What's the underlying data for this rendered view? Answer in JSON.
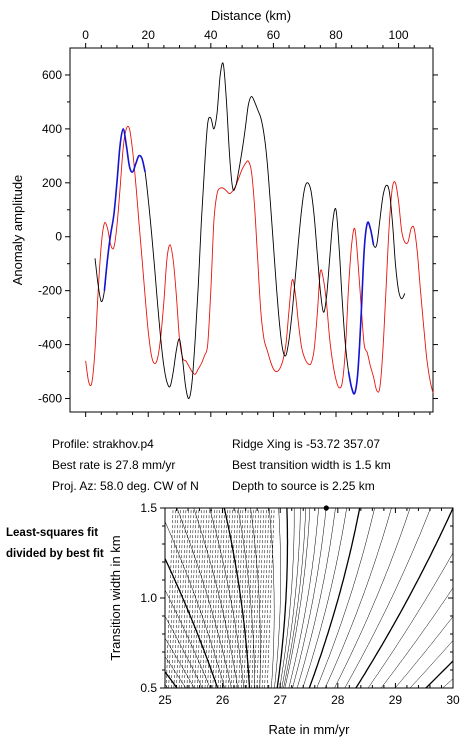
{
  "chart_data": [
    {
      "type": "line",
      "xlabel": "Distance (km)",
      "ylabel": "Anomaly amplitude",
      "xlim": [
        -5,
        111
      ],
      "ylim": [
        -650,
        700
      ],
      "x_ticks": [
        0,
        20,
        40,
        60,
        80,
        100
      ],
      "y_ticks": [
        600,
        400,
        200,
        0,
        -200,
        -400,
        -600
      ],
      "x_tick_labels": [
        "0",
        "20",
        "40",
        "60",
        "80",
        "100"
      ],
      "y_tick_labels": [
        "600",
        "400",
        "200",
        "0",
        "-200",
        "-400",
        "-600"
      ],
      "series": [
        {
          "role": "observed",
          "color": "#000000",
          "points": [
            [
              3,
              -80
            ],
            [
              4,
              -180
            ],
            [
              5,
              -240
            ],
            [
              6,
              -200
            ],
            [
              7,
              -80
            ],
            [
              8,
              10
            ],
            [
              9,
              80
            ],
            [
              10,
              200
            ],
            [
              11,
              340
            ],
            [
              12,
              400
            ],
            [
              13,
              340
            ],
            [
              14,
              260
            ],
            [
              15,
              240
            ],
            [
              16,
              270
            ],
            [
              17,
              300
            ],
            [
              18,
              290
            ],
            [
              19,
              240
            ],
            [
              20,
              140
            ],
            [
              21,
              20
            ],
            [
              22,
              -110
            ],
            [
              23,
              -250
            ],
            [
              24,
              -380
            ],
            [
              25,
              -480
            ],
            [
              26,
              -540
            ],
            [
              27,
              -555
            ],
            [
              28,
              -500
            ],
            [
              29,
              -420
            ],
            [
              30,
              -380
            ],
            [
              31,
              -460
            ],
            [
              32,
              -560
            ],
            [
              33,
              -600
            ],
            [
              34,
              -540
            ],
            [
              35,
              -380
            ],
            [
              36,
              -180
            ],
            [
              37,
              60
            ],
            [
              38,
              260
            ],
            [
              39,
              420
            ],
            [
              40,
              440
            ],
            [
              41,
              400
            ],
            [
              42,
              460
            ],
            [
              43,
              600
            ],
            [
              44,
              640
            ],
            [
              45,
              500
            ],
            [
              46,
              300
            ],
            [
              47,
              180
            ],
            [
              48,
              190
            ],
            [
              49,
              250
            ],
            [
              50,
              320
            ],
            [
              51,
              400
            ],
            [
              52,
              490
            ],
            [
              53,
              520
            ],
            [
              54,
              500
            ],
            [
              55,
              470
            ],
            [
              56,
              440
            ],
            [
              57,
              380
            ],
            [
              58,
              280
            ],
            [
              59,
              130
            ],
            [
              60,
              -30
            ],
            [
              61,
              -190
            ],
            [
              62,
              -330
            ],
            [
              63,
              -420
            ],
            [
              64,
              -440
            ],
            [
              65,
              -380
            ],
            [
              66,
              -280
            ],
            [
              67,
              -150
            ],
            [
              68,
              -20
            ],
            [
              69,
              100
            ],
            [
              70,
              180
            ],
            [
              71,
              200
            ],
            [
              72,
              170
            ],
            [
              73,
              80
            ],
            [
              74,
              -60
            ],
            [
              75,
              -200
            ],
            [
              76,
              -280
            ],
            [
              77,
              -220
            ],
            [
              78,
              -80
            ],
            [
              79,
              60
            ],
            [
              80,
              100
            ],
            [
              81,
              -40
            ],
            [
              82,
              -240
            ],
            [
              83,
              -400
            ],
            [
              84,
              -500
            ],
            [
              85,
              -560
            ],
            [
              86,
              -580
            ],
            [
              87,
              -500
            ],
            [
              88,
              -300
            ],
            [
              89,
              -50
            ],
            [
              90,
              50
            ],
            [
              91,
              30
            ],
            [
              92,
              -30
            ],
            [
              93,
              -30
            ],
            [
              94,
              60
            ],
            [
              95,
              150
            ],
            [
              96,
              190
            ],
            [
              97,
              170
            ],
            [
              98,
              60
            ],
            [
              99,
              -100
            ],
            [
              100,
              -200
            ],
            [
              101,
              -230
            ],
            [
              102,
              -210
            ]
          ]
        },
        {
          "role": "model",
          "color": "#e8140c",
          "points": [
            [
              0,
              -460
            ],
            [
              1,
              -540
            ],
            [
              2,
              -540
            ],
            [
              3,
              -420
            ],
            [
              4,
              -200
            ],
            [
              5,
              -30
            ],
            [
              6,
              50
            ],
            [
              7,
              30
            ],
            [
              8,
              -30
            ],
            [
              9,
              -40
            ],
            [
              10,
              40
            ],
            [
              11,
              180
            ],
            [
              12,
              330
            ],
            [
              13,
              400
            ],
            [
              14,
              400
            ],
            [
              15,
              320
            ],
            [
              16,
              200
            ],
            [
              17,
              60
            ],
            [
              18,
              -80
            ],
            [
              19,
              -220
            ],
            [
              20,
              -350
            ],
            [
              21,
              -440
            ],
            [
              22,
              -470
            ],
            [
              23,
              -450
            ],
            [
              24,
              -370
            ],
            [
              25,
              -240
            ],
            [
              26,
              -80
            ],
            [
              27,
              -30
            ],
            [
              28,
              -90
            ],
            [
              29,
              -220
            ],
            [
              30,
              -380
            ],
            [
              31,
              -450
            ],
            [
              32,
              -460
            ],
            [
              33,
              -480
            ],
            [
              34,
              -500
            ],
            [
              35,
              -510
            ],
            [
              36,
              -490
            ],
            [
              37,
              -470
            ],
            [
              38,
              -440
            ],
            [
              39,
              -400
            ],
            [
              40,
              -200
            ],
            [
              41,
              60
            ],
            [
              42,
              160
            ],
            [
              43,
              180
            ],
            [
              44,
              180
            ],
            [
              45,
              170
            ],
            [
              46,
              160
            ],
            [
              47,
              170
            ],
            [
              48,
              190
            ],
            [
              49,
              220
            ],
            [
              50,
              250
            ],
            [
              51,
              270
            ],
            [
              52,
              280
            ],
            [
              53,
              240
            ],
            [
              54,
              110
            ],
            [
              55,
              -90
            ],
            [
              56,
              -280
            ],
            [
              57,
              -380
            ],
            [
              58,
              -420
            ],
            [
              59,
              -460
            ],
            [
              60,
              -490
            ],
            [
              61,
              -500
            ],
            [
              62,
              -490
            ],
            [
              63,
              -460
            ],
            [
              64,
              -400
            ],
            [
              65,
              -270
            ],
            [
              66,
              -160
            ],
            [
              67,
              -210
            ],
            [
              68,
              -320
            ],
            [
              69,
              -410
            ],
            [
              70,
              -450
            ],
            [
              71,
              -470
            ],
            [
              72,
              -470
            ],
            [
              73,
              -420
            ],
            [
              74,
              -290
            ],
            [
              75,
              -130
            ],
            [
              76,
              -160
            ],
            [
              77,
              -250
            ],
            [
              78,
              -380
            ],
            [
              79,
              -470
            ],
            [
              80,
              -530
            ],
            [
              81,
              -560
            ],
            [
              82,
              -540
            ],
            [
              83,
              -420
            ],
            [
              84,
              -190
            ],
            [
              85,
              -30
            ],
            [
              86,
              30
            ],
            [
              87,
              -90
            ],
            [
              88,
              -250
            ],
            [
              89,
              -400
            ],
            [
              90,
              -430
            ],
            [
              91,
              -480
            ],
            [
              92,
              -520
            ],
            [
              93,
              -570
            ],
            [
              94,
              -560
            ],
            [
              95,
              -420
            ],
            [
              96,
              -190
            ],
            [
              97,
              40
            ],
            [
              98,
              180
            ],
            [
              99,
              200
            ],
            [
              100,
              130
            ],
            [
              101,
              20
            ],
            [
              102,
              -20
            ],
            [
              103,
              -20
            ],
            [
              104,
              30
            ],
            [
              105,
              30
            ],
            [
              106,
              -60
            ],
            [
              107,
              -200
            ],
            [
              108,
              -330
            ],
            [
              109,
              -450
            ],
            [
              110,
              -530
            ],
            [
              111,
              -580
            ]
          ]
        },
        {
          "role": "fit-window",
          "color": "#1414d2",
          "segments": [
            [
              6,
              19
            ],
            [
              84,
              92
            ]
          ]
        }
      ]
    },
    {
      "type": "contour",
      "xlabel": "Rate in mm/yr",
      "ylabel": "Transition width in km",
      "xlim": [
        25,
        30
      ],
      "ylim": [
        0.5,
        1.5
      ],
      "x_ticks": [
        25,
        26,
        27,
        28,
        29,
        30
      ],
      "y_ticks": [
        0.5,
        1.0,
        1.5
      ],
      "x_tick_labels": [
        "25",
        "26",
        "27",
        "28",
        "29",
        "30"
      ],
      "y_tick_labels": [
        "0.5",
        "1.0",
        "1.5"
      ],
      "best_fit": {
        "rate": 27.8,
        "width": 1.5
      }
    }
  ],
  "info": {
    "profile": "Profile: strakhov.p4",
    "best_rate": "Best rate is 27.8 mm/yr",
    "proj_az": "Proj. Az: 58.0 deg. CW of N",
    "ridge_xing": "Ridge Xing is -53.72 357.07",
    "best_transition": "Best transition width is 1.5 km",
    "depth": "Depth to source is   2.25 km"
  },
  "side_note": "Least-squares fit divided by best fit"
}
